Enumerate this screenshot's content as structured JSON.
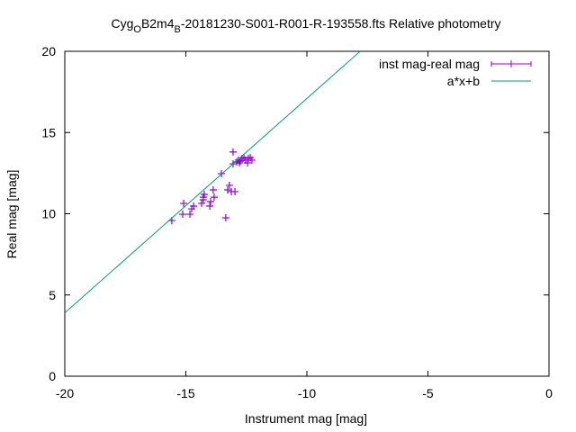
{
  "chart_data": {
    "type": "scatter",
    "title": [
      "Cyg",
      "O",
      "B2m4",
      "B",
      "-20181230-S001-R001-R-193558.fts Relative photometry"
    ],
    "xlabel": "Instrument mag [mag]",
    "ylabel": "Real mag [mag]",
    "xlim": [
      -20,
      0
    ],
    "ylim": [
      0,
      20
    ],
    "xticks": [
      -20,
      -15,
      -10,
      -5,
      0
    ],
    "yticks": [
      0,
      5,
      10,
      15,
      20
    ],
    "legend": "top-right",
    "series": [
      {
        "name": "inst mag-real mag",
        "color": "#9400d3",
        "mode": "points",
        "x": [
          -15.58,
          -15.13,
          -15.09,
          -14.83,
          -14.76,
          -14.68,
          -14.35,
          -14.28,
          -14.28,
          -14.24,
          -14.01,
          -13.98,
          -13.87,
          -13.83,
          -13.53,
          -13.35,
          -13.27,
          -13.2,
          -13.12,
          -13.05,
          -13.05,
          -12.97,
          -12.9,
          -12.83,
          -12.75,
          -12.68,
          -12.6,
          -12.53,
          -12.45,
          -12.42,
          -12.34,
          -12.27,
          -12.79
        ],
        "values": [
          9.58,
          9.97,
          10.64,
          9.97,
          10.3,
          10.47,
          10.64,
          10.86,
          11.02,
          11.19,
          10.47,
          10.75,
          11.47,
          11.02,
          12.47,
          9.75,
          11.47,
          11.75,
          11.36,
          13.8,
          13.07,
          11.36,
          13.19,
          13.3,
          13.24,
          13.41,
          13.46,
          13.3,
          13.13,
          13.41,
          13.46,
          13.3,
          13.13
        ]
      },
      {
        "name": "a*x+b",
        "color": "#009e73",
        "mode": "line",
        "x": [
          -20,
          -7.8
        ],
        "values": [
          3.9,
          20
        ]
      }
    ]
  }
}
